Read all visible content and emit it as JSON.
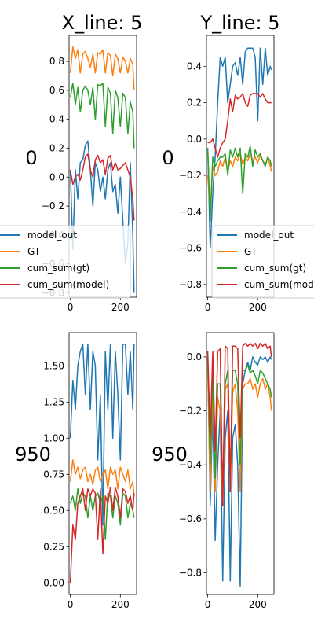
{
  "figure": {
    "col_titles": [
      "X_line: 5",
      "Y_line: 5"
    ],
    "row_labels": [
      "0",
      "950"
    ]
  },
  "colors": {
    "model_out": "#1f77b4",
    "GT": "#ff7f0e",
    "cum_sum(gt)": "#2ca02c",
    "cum_sum(model)": "#d62728"
  },
  "legend_labels": [
    "model_out",
    "GT",
    "cum_sum(gt)",
    "cum_sum(model)"
  ],
  "chart_data": [
    {
      "type": "line",
      "title": "X_line: 5",
      "row_label": "0",
      "legend": "center-left",
      "xlim": [
        -5,
        265
      ],
      "ylim": [
        -0.83,
        0.98
      ],
      "xticks": [
        0,
        200
      ],
      "xtick_labels": [
        "0",
        "200"
      ],
      "yticks": [
        -0.8,
        -0.6,
        -0.4,
        -0.2,
        0.0,
        0.2,
        0.4,
        0.6,
        0.8
      ],
      "ytick_labels": [
        "−0.8",
        "−0.6",
        "−0.4",
        "−0.2",
        "0.0",
        "0.2",
        "0.4",
        "0.6",
        "0.8"
      ],
      "x": [
        0,
        10,
        20,
        30,
        40,
        50,
        60,
        70,
        80,
        90,
        100,
        110,
        120,
        130,
        140,
        150,
        160,
        170,
        180,
        190,
        200,
        210,
        220,
        230,
        240,
        250,
        255
      ],
      "series": [
        {
          "name": "model_out",
          "values": [
            0.05,
            -0.5,
            0.05,
            -0.15,
            0.1,
            0.12,
            0.22,
            0.25,
            0.05,
            -0.2,
            0.1,
            0.05,
            -0.1,
            0.0,
            -0.15,
            0.05,
            0.1,
            -0.1,
            -0.05,
            -0.25,
            0.0,
            -0.3,
            -0.6,
            -0.45,
            0.1,
            -0.4,
            -0.8
          ]
        },
        {
          "name": "GT",
          "values": [
            0.72,
            0.9,
            0.82,
            0.88,
            0.72,
            0.85,
            0.87,
            0.82,
            0.76,
            0.85,
            0.72,
            0.86,
            0.85,
            0.88,
            0.72,
            0.86,
            0.84,
            0.7,
            0.85,
            0.82,
            0.72,
            0.83,
            0.8,
            0.72,
            0.82,
            0.78,
            0.6
          ]
        },
        {
          "name": "cum_sum(gt)",
          "values": [
            0.55,
            0.65,
            0.5,
            0.62,
            0.45,
            0.6,
            0.63,
            0.6,
            0.5,
            0.62,
            0.4,
            0.64,
            0.63,
            0.65,
            0.35,
            0.62,
            0.58,
            0.3,
            0.6,
            0.55,
            0.35,
            0.58,
            0.55,
            0.3,
            0.52,
            0.45,
            0.2
          ]
        },
        {
          "name": "cum_sum(model)",
          "values": [
            0.05,
            -0.05,
            0.0,
            0.02,
            -0.02,
            0.05,
            0.14,
            0.16,
            0.05,
            0.0,
            0.12,
            0.15,
            0.1,
            0.12,
            0.02,
            0.13,
            0.15,
            0.05,
            0.1,
            0.05,
            0.06,
            0.08,
            0.1,
            0.05,
            0.0,
            -0.15,
            -0.3
          ]
        }
      ]
    },
    {
      "type": "line",
      "title": "Y_line: 5",
      "row_label": "0",
      "legend": "lower-right",
      "xlim": [
        -5,
        265
      ],
      "ylim": [
        -0.87,
        0.57
      ],
      "xticks": [
        0,
        200
      ],
      "xtick_labels": [
        "0",
        "200"
      ],
      "yticks": [
        -0.8,
        -0.6,
        -0.4,
        -0.2,
        0.0,
        0.2,
        0.4
      ],
      "ytick_labels": [
        "−0.8",
        "−0.6",
        "−0.4",
        "−0.2",
        "0.0",
        "0.2",
        "0.4"
      ],
      "x": [
        0,
        10,
        20,
        30,
        40,
        50,
        60,
        70,
        80,
        90,
        100,
        110,
        120,
        130,
        140,
        150,
        160,
        170,
        180,
        190,
        200,
        210,
        220,
        230,
        240,
        250,
        255
      ],
      "series": [
        {
          "name": "model_out",
          "values": [
            -0.05,
            -0.6,
            -0.3,
            -0.1,
            0.2,
            0.45,
            0.4,
            0.45,
            0.2,
            0.3,
            0.4,
            0.42,
            0.35,
            0.45,
            0.3,
            0.48,
            0.5,
            0.5,
            0.5,
            0.45,
            0.1,
            0.5,
            0.3,
            0.5,
            0.35,
            0.4,
            0.38
          ]
        },
        {
          "name": "GT",
          "values": [
            -0.2,
            -0.4,
            -0.15,
            -0.2,
            -0.18,
            -0.12,
            -0.15,
            -0.1,
            -0.18,
            -0.12,
            -0.15,
            -0.1,
            -0.12,
            -0.08,
            -0.14,
            -0.1,
            -0.12,
            -0.08,
            -0.12,
            -0.1,
            -0.13,
            -0.09,
            -0.12,
            -0.14,
            -0.1,
            -0.15,
            -0.18
          ]
        },
        {
          "name": "cum_sum(gt)",
          "values": [
            -0.05,
            -0.45,
            -0.1,
            -0.15,
            -0.12,
            -0.1,
            -0.1,
            -0.08,
            -0.2,
            -0.06,
            -0.1,
            -0.05,
            -0.1,
            -0.05,
            -0.3,
            -0.08,
            -0.1,
            -0.04,
            -0.15,
            -0.06,
            -0.1,
            -0.08,
            -0.12,
            -0.15,
            -0.1,
            -0.12,
            -0.15
          ]
        },
        {
          "name": "cum_sum(model)",
          "values": [
            -0.02,
            -0.02,
            0.0,
            -0.05,
            -0.1,
            -0.05,
            -0.02,
            0.0,
            0.1,
            0.22,
            0.15,
            0.24,
            0.22,
            0.23,
            0.25,
            0.2,
            0.18,
            0.24,
            0.25,
            0.25,
            0.25,
            0.23,
            0.25,
            0.22,
            0.2,
            0.2,
            0.2
          ]
        }
      ]
    },
    {
      "type": "line",
      "title": "",
      "row_label": "950",
      "xlim": [
        -5,
        265
      ],
      "ylim": [
        -0.08,
        1.73
      ],
      "xticks": [
        0,
        200
      ],
      "xtick_labels": [
        "0",
        "200"
      ],
      "yticks": [
        0.0,
        0.25,
        0.5,
        0.75,
        1.0,
        1.25,
        1.5
      ],
      "ytick_labels": [
        "0.00",
        "0.25",
        "0.50",
        "0.75",
        "1.00",
        "1.25",
        "1.50"
      ],
      "x": [
        0,
        10,
        20,
        30,
        40,
        50,
        60,
        70,
        80,
        90,
        100,
        110,
        120,
        130,
        140,
        150,
        160,
        170,
        180,
        190,
        200,
        210,
        220,
        230,
        240,
        250,
        255
      ],
      "series": [
        {
          "name": "model_out",
          "values": [
            1.0,
            1.4,
            1.2,
            1.5,
            1.6,
            1.65,
            1.3,
            1.65,
            1.2,
            1.6,
            1.5,
            0.85,
            1.3,
            0.4,
            1.6,
            1.2,
            1.65,
            1.0,
            1.6,
            1.3,
            0.85,
            1.65,
            1.65,
            1.3,
            1.6,
            1.2,
            1.65
          ]
        },
        {
          "name": "GT",
          "values": [
            0.7,
            0.85,
            0.75,
            0.8,
            0.72,
            0.78,
            0.8,
            0.7,
            0.75,
            0.68,
            0.78,
            0.8,
            0.7,
            0.75,
            0.78,
            0.65,
            0.8,
            0.75,
            0.78,
            0.65,
            0.8,
            0.75,
            0.7,
            0.78,
            0.65,
            0.7,
            0.6
          ]
        },
        {
          "name": "cum_sum(gt)",
          "values": [
            0.55,
            0.6,
            0.5,
            0.65,
            0.55,
            0.62,
            0.6,
            0.45,
            0.6,
            0.5,
            0.6,
            0.62,
            0.55,
            0.6,
            0.3,
            0.62,
            0.6,
            0.45,
            0.6,
            0.55,
            0.4,
            0.62,
            0.6,
            0.45,
            0.55,
            0.5,
            0.45
          ]
        },
        {
          "name": "cum_sum(model)",
          "values": [
            0.0,
            0.4,
            0.3,
            0.55,
            0.6,
            0.65,
            0.5,
            0.65,
            0.6,
            0.65,
            0.62,
            0.3,
            0.65,
            0.2,
            0.6,
            0.55,
            0.66,
            0.5,
            0.66,
            0.6,
            0.45,
            0.65,
            0.63,
            0.55,
            0.6,
            0.5,
            0.62
          ]
        }
      ]
    },
    {
      "type": "line",
      "title": "",
      "row_label": "950",
      "xlim": [
        -5,
        265
      ],
      "ylim": [
        -0.88,
        0.09
      ],
      "xticks": [
        0,
        200
      ],
      "xtick_labels": [
        "0",
        "200"
      ],
      "yticks": [
        -0.8,
        -0.6,
        -0.4,
        -0.2,
        0.0
      ],
      "ytick_labels": [
        "−0.8",
        "−0.6",
        "−0.4",
        "−0.2",
        "0.0"
      ],
      "x": [
        0,
        10,
        20,
        30,
        40,
        50,
        60,
        70,
        80,
        90,
        100,
        110,
        120,
        130,
        140,
        150,
        160,
        170,
        180,
        190,
        200,
        210,
        220,
        230,
        240,
        250,
        255
      ],
      "series": [
        {
          "name": "model_out",
          "values": [
            0.0,
            -0.55,
            -0.2,
            -0.68,
            -0.4,
            -0.2,
            -0.83,
            -0.3,
            -0.2,
            -0.83,
            -0.3,
            -0.25,
            -0.4,
            -0.85,
            -0.1,
            -0.05,
            -0.02,
            -0.05,
            0.0,
            -0.02,
            -0.03,
            0.0,
            -0.01,
            0.0,
            -0.02,
            0.0,
            -0.01
          ]
        },
        {
          "name": "GT",
          "values": [
            -0.05,
            -0.5,
            -0.1,
            -0.5,
            -0.15,
            -0.2,
            -0.55,
            -0.12,
            -0.1,
            -0.5,
            -0.13,
            -0.1,
            -0.2,
            -0.5,
            -0.12,
            -0.1,
            -0.1,
            -0.08,
            -0.12,
            -0.1,
            -0.15,
            -0.1,
            -0.08,
            -0.12,
            -0.1,
            -0.15,
            -0.2
          ]
        },
        {
          "name": "cum_sum(gt)",
          "values": [
            0.0,
            -0.4,
            -0.05,
            -0.45,
            -0.1,
            -0.1,
            -0.5,
            -0.1,
            -0.05,
            -0.45,
            -0.05,
            -0.05,
            -0.1,
            -0.4,
            -0.05,
            -0.05,
            -0.03,
            -0.06,
            -0.05,
            -0.07,
            -0.1,
            -0.05,
            -0.06,
            -0.08,
            -0.1,
            -0.12,
            -0.15
          ]
        },
        {
          "name": "cum_sum(model)",
          "values": [
            0.02,
            -0.3,
            0.02,
            -0.35,
            0.02,
            0.03,
            -0.55,
            0.04,
            0.03,
            -0.5,
            0.04,
            0.04,
            0.03,
            -0.3,
            0.04,
            0.05,
            0.04,
            0.05,
            0.04,
            0.05,
            0.03,
            0.05,
            0.04,
            0.05,
            0.03,
            0.04,
            0.0
          ]
        }
      ]
    }
  ]
}
